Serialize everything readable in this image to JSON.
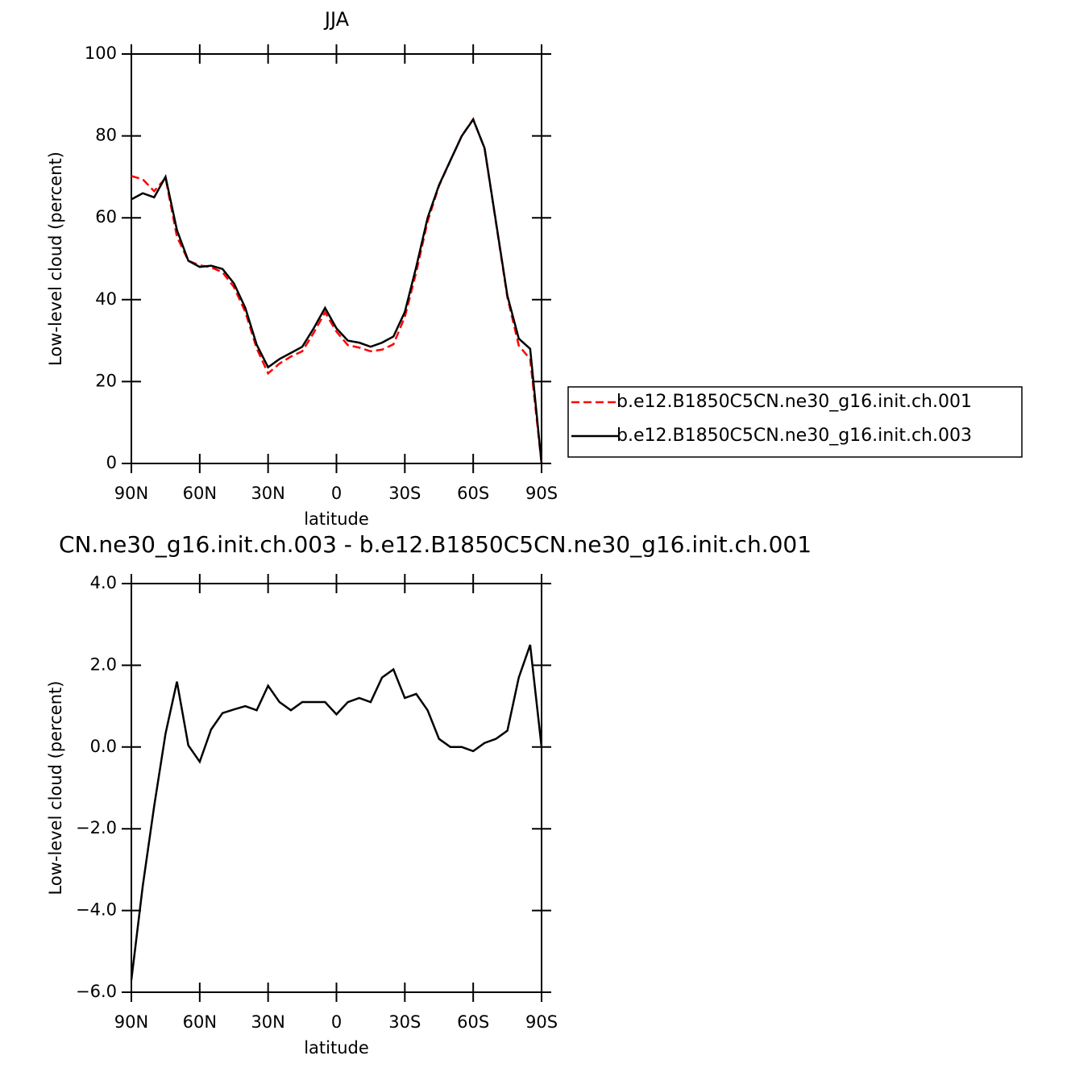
{
  "chart_data": [
    {
      "type": "line",
      "title": "JJA",
      "xlabel": "latitude",
      "ylabel": "Low-level cloud (percent)",
      "x": [
        90,
        85,
        80,
        75,
        70,
        65,
        60,
        55,
        50,
        45,
        40,
        35,
        30,
        25,
        20,
        15,
        10,
        5,
        0,
        -5,
        -10,
        -15,
        -20,
        -25,
        -30,
        -35,
        -40,
        -45,
        -50,
        -55,
        -60,
        -65,
        -70,
        -75,
        -80,
        -85,
        -90
      ],
      "xlim": [
        90,
        -90
      ],
      "xticks": [
        {
          "value": 90,
          "label": "90N"
        },
        {
          "value": 60,
          "label": "60N"
        },
        {
          "value": 30,
          "label": "30N"
        },
        0,
        {
          "value": -30,
          "label": "30S"
        },
        {
          "value": -60,
          "label": "60S"
        },
        {
          "value": -90,
          "label": "90S"
        }
      ],
      "ylim": [
        0,
        100
      ],
      "yticks": [
        0,
        20,
        40,
        60,
        80,
        100
      ],
      "legend": "right",
      "series": [
        {
          "name": "b.e12.B1850C5CN.ne30_g16.init.ch.001",
          "color": "#ff0000",
          "style": "dashed",
          "values": [
            70.2,
            69.4,
            66.5,
            69.7,
            55.4,
            49.5,
            48.4,
            47.9,
            46.7,
            43.1,
            37,
            28.1,
            22,
            24.4,
            26.1,
            27.4,
            31.9,
            36.9,
            32.2,
            28.9,
            28.3,
            27.4,
            27.8,
            29.1,
            35.8,
            46.7,
            59.1,
            67.8,
            74,
            80,
            84.1,
            76.9,
            58.8,
            40.6,
            28.8,
            25.5,
            0
          ]
        },
        {
          "name": "b.e12.B1850C5CN.ne30_g16.init.ch.003",
          "color": "#000000",
          "style": "solid",
          "values": [
            64.5,
            66,
            65,
            70,
            57,
            49.5,
            48,
            48.3,
            47.5,
            44,
            38,
            29,
            23.5,
            25.5,
            27,
            28.5,
            33,
            38,
            33,
            30,
            29.5,
            28.5,
            29.5,
            31,
            37,
            48,
            60,
            68,
            74,
            80,
            84,
            77,
            59,
            41,
            30.5,
            28,
            0
          ]
        }
      ]
    },
    {
      "type": "line",
      "title": "CN.ne30_g16.init.ch.003 - b.e12.B1850C5CN.ne30_g16.init.ch.001",
      "xlabel": "latitude",
      "ylabel": "Low-level cloud (percent)",
      "x": [
        90,
        85,
        80,
        75,
        70,
        65,
        60,
        55,
        50,
        45,
        40,
        35,
        30,
        25,
        20,
        15,
        10,
        5,
        0,
        -5,
        -10,
        -15,
        -20,
        -25,
        -30,
        -35,
        -40,
        -45,
        -50,
        -55,
        -60,
        -65,
        -70,
        -75,
        -80,
        -85,
        -90
      ],
      "xlim": [
        90,
        -90
      ],
      "xticks": [
        {
          "value": 90,
          "label": "90N"
        },
        {
          "value": 60,
          "label": "60N"
        },
        {
          "value": 30,
          "label": "30N"
        },
        0,
        {
          "value": -30,
          "label": "30S"
        },
        {
          "value": -60,
          "label": "60S"
        },
        {
          "value": -90,
          "label": "90S"
        }
      ],
      "ylim": [
        -6,
        4
      ],
      "yticks": [
        {
          "value": -6,
          "label": "−6.0"
        },
        {
          "value": -4,
          "label": "−4.0"
        },
        {
          "value": -2,
          "label": "−2.0"
        },
        {
          "value": 0,
          "label": "0.0"
        },
        {
          "value": 2,
          "label": "2.0"
        },
        {
          "value": 4,
          "label": "4.0"
        }
      ],
      "series": [
        {
          "color": "#000000",
          "style": "solid",
          "values": [
            -5.7,
            -3.4,
            -1.45,
            0.33,
            1.6,
            0.04,
            -0.36,
            0.43,
            0.83,
            0.92,
            1.0,
            0.9,
            1.5,
            1.1,
            0.9,
            1.1,
            1.1,
            1.1,
            0.8,
            1.1,
            1.2,
            1.1,
            1.7,
            1.9,
            1.2,
            1.3,
            0.9,
            0.2,
            0.0,
            0.0,
            -0.1,
            0.1,
            0.2,
            0.4,
            1.7,
            2.5,
            0.0
          ]
        }
      ]
    }
  ]
}
